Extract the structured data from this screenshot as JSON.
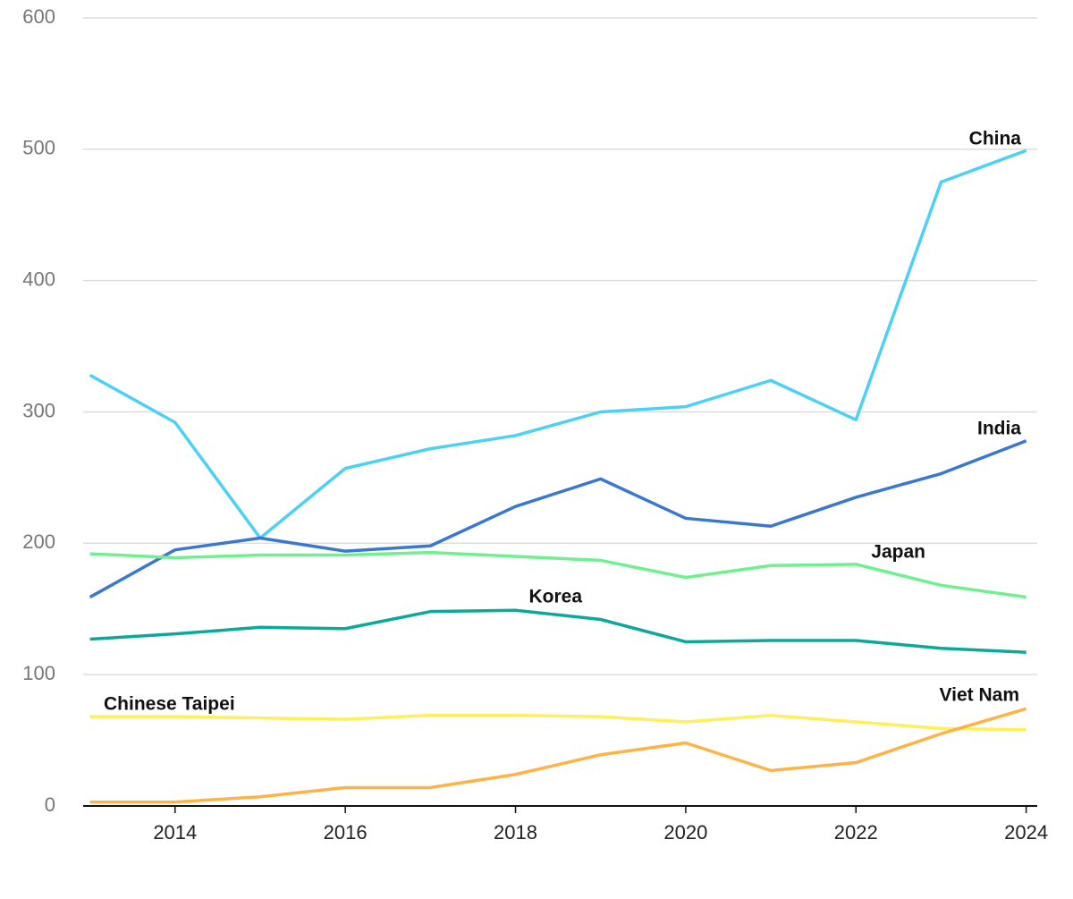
{
  "chart_data": {
    "type": "line",
    "x": [
      2013,
      2014,
      2015,
      2016,
      2017,
      2018,
      2019,
      2020,
      2021,
      2022,
      2023,
      2024
    ],
    "series": [
      {
        "name": "China",
        "color": "#4dd0f5",
        "values": [
          328,
          292,
          204,
          257,
          272,
          282,
          300,
          304,
          324,
          294,
          475,
          499
        ]
      },
      {
        "name": "India",
        "color": "#3a78d0",
        "values": [
          159,
          195,
          204,
          194,
          198,
          228,
          249,
          219,
          213,
          235,
          253,
          278
        ]
      },
      {
        "name": "Japan",
        "color": "#6ef08f",
        "values": [
          192,
          189,
          191,
          191,
          193,
          190,
          187,
          174,
          183,
          184,
          168,
          159
        ]
      },
      {
        "name": "Korea",
        "color": "#0aa99a",
        "values": [
          127,
          131,
          136,
          135,
          148,
          149,
          142,
          125,
          126,
          126,
          120,
          117
        ]
      },
      {
        "name": "Chinese Taipei",
        "color": "#ffef5a",
        "values": [
          68,
          68,
          67,
          66,
          69,
          69,
          68,
          64,
          69,
          64,
          59,
          58
        ]
      },
      {
        "name": "Viet Nam",
        "color": "#ffb347",
        "values": [
          3,
          3,
          7,
          14,
          14,
          24,
          39,
          48,
          27,
          33,
          55,
          74
        ]
      }
    ],
    "xlim": [
      2012.92,
      2024.13
    ],
    "xticks": [
      2014,
      2016,
      2018,
      2020,
      2022,
      2024
    ],
    "ylim": [
      0,
      600
    ],
    "yticks": [
      0,
      100,
      200,
      300,
      400,
      500,
      600
    ],
    "grid": true
  }
}
